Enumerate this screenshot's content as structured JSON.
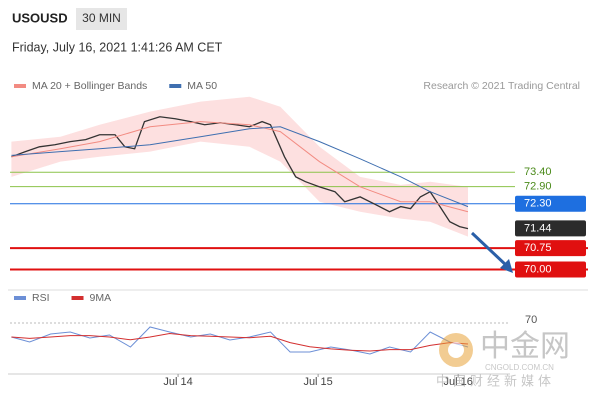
{
  "header": {
    "symbol": "USOUSD",
    "timeframe": "30 MIN",
    "datetime": "Friday, July 16, 2021 1:41:26 AM CET",
    "credit": "Research © 2021 Trading Central"
  },
  "chart_data": [
    {
      "type": "line",
      "legend": "top-left",
      "xlim": [
        12.8,
        16.37
      ],
      "ylim": [
        69.6,
        76.1
      ],
      "series": [
        {
          "color": "#333333",
          "x": [
            12.81,
            12.91,
            13.01,
            13.12,
            13.23,
            13.34,
            13.44,
            13.55,
            13.62,
            13.69,
            13.76,
            13.87,
            13.98,
            14.09,
            14.19,
            14.3,
            14.41,
            14.51,
            14.6,
            14.66,
            14.76,
            14.84,
            14.91,
            15.01,
            15.12,
            15.19,
            15.3,
            15.41,
            15.51,
            15.59,
            15.66,
            15.73,
            15.8,
            15.87,
            15.94,
            16.01,
            16.07
          ],
          "values": [
            73.94,
            74.12,
            74.29,
            74.36,
            74.47,
            74.54,
            74.71,
            74.71,
            74.29,
            74.22,
            75.17,
            75.34,
            75.27,
            75.17,
            75.06,
            75.13,
            75.06,
            74.99,
            75.17,
            75.06,
            73.94,
            73.24,
            73.07,
            72.89,
            72.72,
            72.37,
            72.54,
            72.27,
            72.02,
            72.2,
            72.13,
            72.54,
            72.72,
            72.2,
            71.67,
            71.5,
            71.43
          ]
        },
        {
          "name": "MA 20 + Bollinger Bands",
          "color": "#f28b82",
          "x": [
            12.81,
            13.16,
            13.44,
            13.8,
            14.16,
            14.51,
            14.73,
            15.01,
            15.3,
            15.59,
            15.8,
            16.07
          ],
          "values": [
            73.94,
            74.22,
            74.47,
            74.99,
            75.17,
            75.06,
            74.82,
            73.77,
            72.89,
            72.37,
            72.37,
            72.02
          ],
          "band": {
            "color": "#fde0e0",
            "upper": [
              74.47,
              74.64,
              75.06,
              75.52,
              75.87,
              76.04,
              75.69,
              74.29,
              73.24,
              72.96,
              73.07,
              72.89
            ],
            "lower": [
              73.24,
              73.77,
              73.94,
              74.12,
              74.47,
              74.29,
              73.77,
              72.37,
              72.02,
              71.78,
              71.67,
              71.15
            ]
          }
        },
        {
          "name": "MA 50",
          "color": "#3f6fb0",
          "x": [
            12.81,
            13.16,
            13.44,
            13.8,
            14.16,
            14.51,
            14.73,
            15.01,
            15.3,
            15.59,
            15.8,
            16.07
          ],
          "values": [
            73.99,
            74.12,
            74.22,
            74.36,
            74.64,
            74.92,
            74.99,
            74.47,
            73.87,
            73.24,
            72.72,
            72.2
          ]
        }
      ],
      "levels": [
        {
          "value": 73.4,
          "label": "73.40",
          "color": "#8bc34a",
          "boxed": false
        },
        {
          "value": 72.9,
          "label": "72.90",
          "color": "#8bc34a",
          "boxed": false
        },
        {
          "value": 72.3,
          "label": "72.30",
          "color": "#1e6fe0",
          "boxed": true
        },
        {
          "value": 71.44,
          "label": "71.44",
          "color": "#2b2b2b",
          "boxed": true
        },
        {
          "value": 70.75,
          "label": "70.75",
          "color": "#e01010",
          "boxed": true
        },
        {
          "value": 70.0,
          "label": "70.00",
          "color": "#e01010",
          "boxed": true
        }
      ]
    },
    {
      "type": "line",
      "legend": "top-left",
      "xlim": [
        12.8,
        16.37
      ],
      "ylim": [
        0,
        100
      ],
      "yticks": [
        70
      ],
      "xticks": [
        {
          "value": 14,
          "label": "Jul 14"
        },
        {
          "value": 15,
          "label": "Jul 15"
        },
        {
          "value": 16,
          "label": "Jul 16"
        }
      ],
      "series": [
        {
          "name": "RSI",
          "color": "#6c8fd6",
          "x": [
            12.81,
            12.94,
            13.09,
            13.23,
            13.37,
            13.51,
            13.66,
            13.8,
            13.94,
            14.09,
            14.23,
            14.37,
            14.51,
            14.66,
            14.8,
            14.94,
            15.09,
            15.23,
            15.37,
            15.51,
            15.66,
            15.8,
            15.94,
            16.07
          ],
          "values": [
            50,
            42.9,
            54.3,
            57.1,
            48.6,
            52.9,
            35.7,
            64.3,
            57.1,
            50,
            54.3,
            45.7,
            50,
            57.1,
            28.6,
            28.6,
            35.7,
            31.4,
            25.7,
            35.7,
            28.6,
            57.1,
            42.9,
            35.7
          ]
        },
        {
          "name": "9MA",
          "color": "#d32f2f",
          "x": [
            12.81,
            12.94,
            13.09,
            13.23,
            13.37,
            13.51,
            13.66,
            13.8,
            13.94,
            14.09,
            14.23,
            14.37,
            14.51,
            14.66,
            14.8,
            14.94,
            15.09,
            15.23,
            15.37,
            15.51,
            15.66,
            15.8,
            15.94,
            16.07
          ],
          "values": [
            50,
            48,
            50,
            52,
            52,
            50,
            46,
            50,
            55,
            52,
            51,
            50,
            49,
            51,
            42,
            36,
            33,
            31,
            30,
            32,
            32,
            38,
            42,
            40
          ]
        }
      ]
    }
  ],
  "watermark": {
    "name": "中金网",
    "domain": "CNGOLD.COM.CN",
    "slogan": "中国财经新媒体"
  }
}
